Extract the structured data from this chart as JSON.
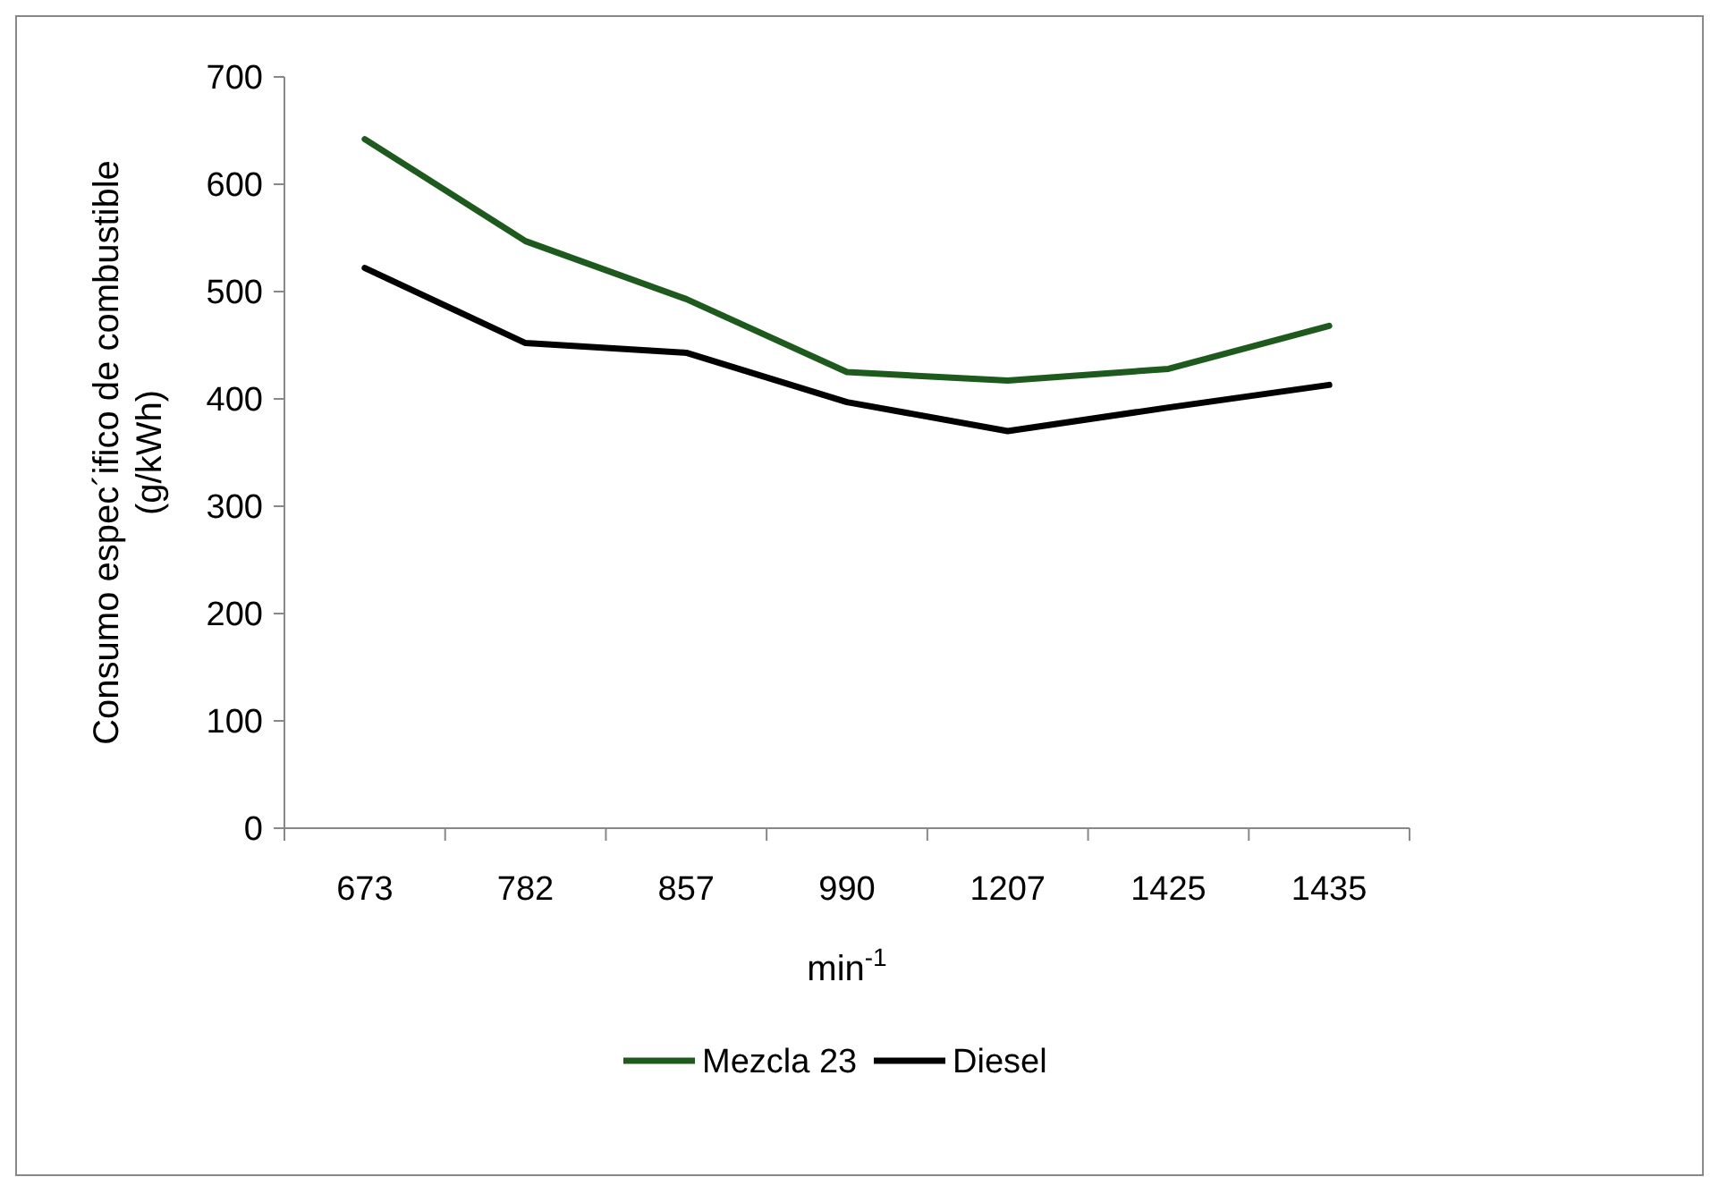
{
  "chart_data": {
    "type": "line",
    "xlabel": "min$^{-1}$",
    "ylabel": "Consumo espec´ifico de combustible\n(g/kWh)",
    "categories": [
      "673",
      "782",
      "857",
      "990",
      "1207",
      "1425",
      "1435"
    ],
    "series": [
      {
        "name": "Mezcla 23",
        "color": "#1e5a1e",
        "values": [
          642,
          547,
          493,
          425,
          417,
          428,
          468
        ]
      },
      {
        "name": "Diesel",
        "color": "#000000",
        "values": [
          522,
          452,
          443,
          397,
          370,
          392,
          413
        ]
      }
    ],
    "ylim": [
      0,
      700
    ],
    "yticks": [
      0,
      100,
      200,
      300,
      400,
      500,
      600,
      700
    ],
    "legend": "bottom",
    "marker": "none",
    "line_style": "solid"
  }
}
